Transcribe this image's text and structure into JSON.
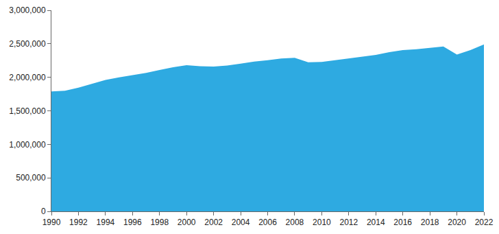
{
  "chart_data": {
    "type": "area",
    "x": [
      1990,
      1991,
      1992,
      1993,
      1994,
      1995,
      1996,
      1997,
      1998,
      1999,
      2000,
      2001,
      2002,
      2003,
      2004,
      2005,
      2006,
      2007,
      2008,
      2009,
      2010,
      2011,
      2012,
      2013,
      2014,
      2015,
      2016,
      2017,
      2018,
      2019,
      2020,
      2021,
      2022
    ],
    "values": [
      1790000,
      1800000,
      1845000,
      1900000,
      1960000,
      2000000,
      2030000,
      2065000,
      2110000,
      2150000,
      2180000,
      2165000,
      2160000,
      2175000,
      2205000,
      2235000,
      2255000,
      2280000,
      2290000,
      2225000,
      2230000,
      2255000,
      2285000,
      2310000,
      2335000,
      2375000,
      2405000,
      2420000,
      2440000,
      2460000,
      2340000,
      2405000,
      2490000
    ],
    "color": "#2eaae1",
    "xlim": [
      1990,
      2022
    ],
    "xticks": [
      1990,
      1992,
      1994,
      1996,
      1998,
      2000,
      2002,
      2004,
      2006,
      2008,
      2010,
      2012,
      2014,
      2016,
      2018,
      2020,
      2022
    ],
    "ylim": [
      0,
      3000000
    ],
    "yticks": [
      0,
      {
        "value": 500000,
        "label": "500,000"
      },
      {
        "value": 1000000,
        "label": "1,000,000"
      },
      {
        "value": 1500000,
        "label": "1,500,000"
      },
      {
        "value": 2000000,
        "label": "2,000,000"
      },
      {
        "value": 2500000,
        "label": "2,500,000"
      },
      {
        "value": 3000000,
        "label": "3,000,000"
      }
    ],
    "grid": false
  }
}
